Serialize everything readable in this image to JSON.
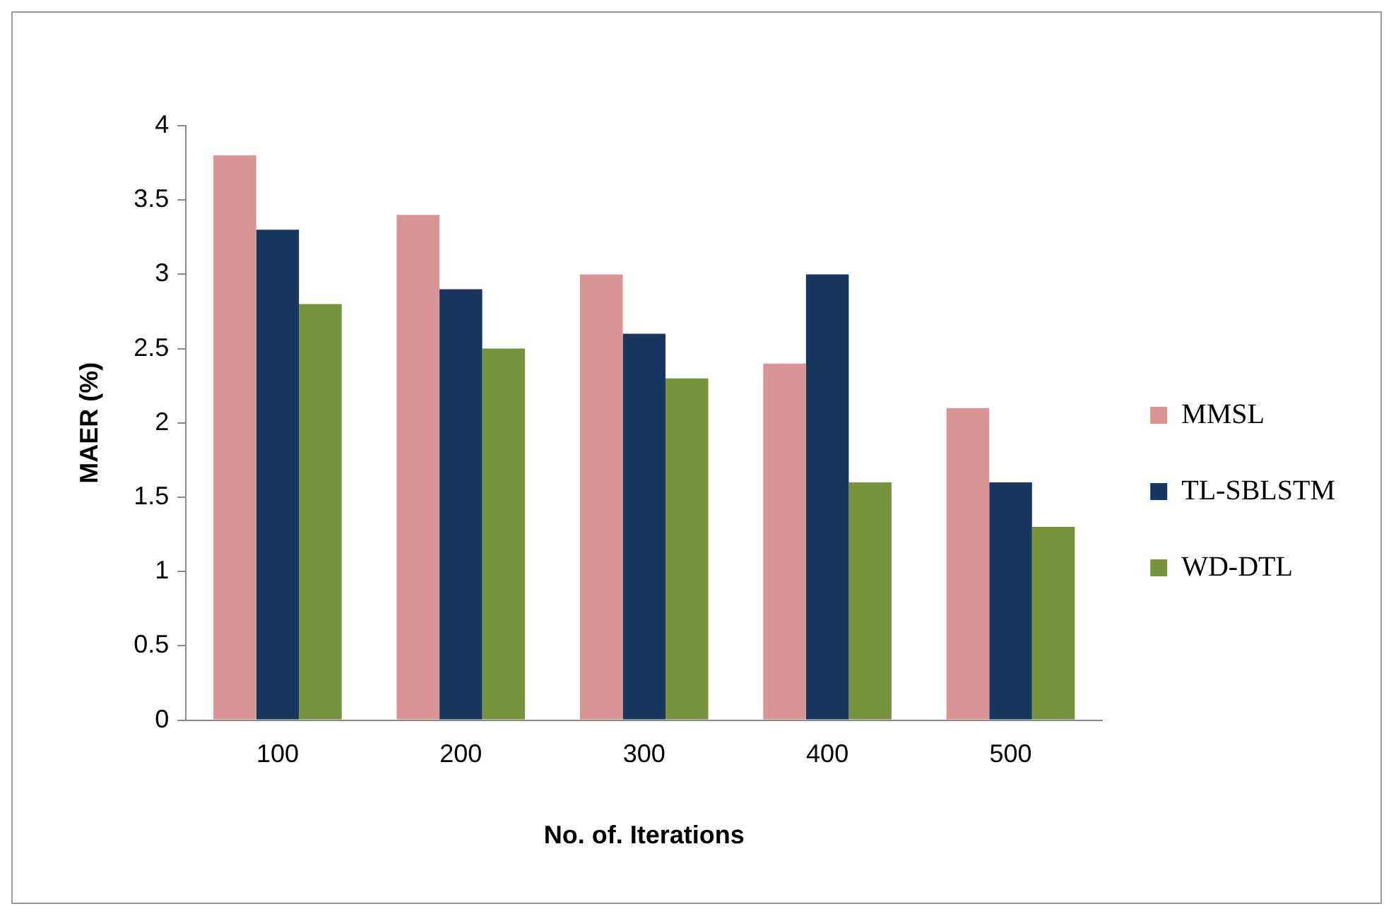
{
  "chart_data": {
    "type": "bar",
    "xlabel": "No. of. Iterations",
    "ylabel": "MAER (%)",
    "categories": [
      "100",
      "200",
      "300",
      "400",
      "500"
    ],
    "series": [
      {
        "name": "MMSL",
        "color": "#d99594",
        "values": [
          3.8,
          3.4,
          3.0,
          2.4,
          2.1
        ]
      },
      {
        "name": "TL-SBLSTM",
        "color": "#17375e",
        "values": [
          3.3,
          2.9,
          2.6,
          3.0,
          1.6
        ]
      },
      {
        "name": "WD-DTL",
        "color": "#77933c",
        "values": [
          2.8,
          2.5,
          2.3,
          1.6,
          1.3
        ]
      }
    ],
    "ylim": [
      0,
      4
    ],
    "yticks": [
      0,
      0.5,
      1,
      1.5,
      2,
      2.5,
      3,
      3.5,
      4
    ],
    "grid": false,
    "legend": "right"
  }
}
